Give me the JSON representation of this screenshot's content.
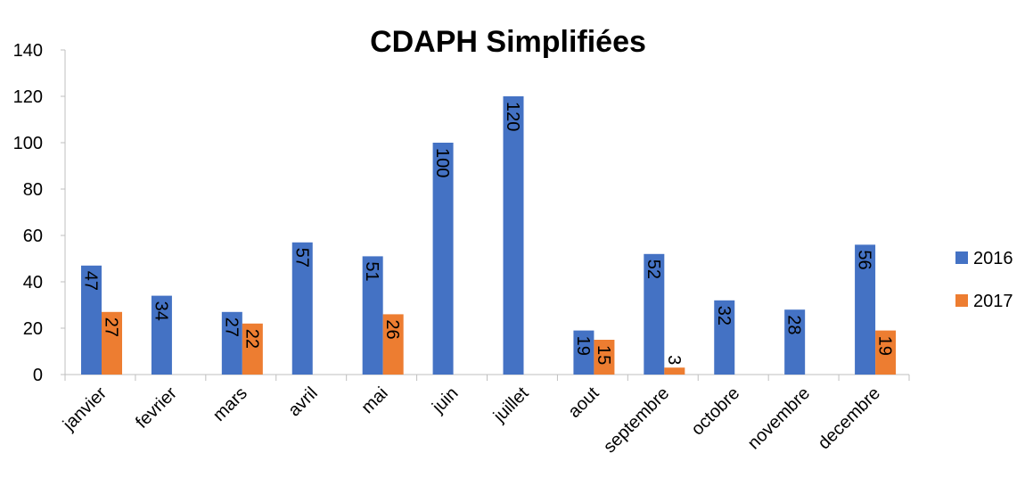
{
  "chart_data": {
    "type": "bar",
    "title": "CDAPH Simplifiées",
    "categories": [
      "janvier",
      "fevrier",
      "mars",
      "avril",
      "mai",
      "juin",
      "juillet",
      "aout",
      "septembre",
      "octobre",
      "novembre",
      "decembre"
    ],
    "series": [
      {
        "name": "2016",
        "color": "#4472c4",
        "values": [
          47,
          34,
          27,
          57,
          51,
          100,
          120,
          19,
          52,
          32,
          28,
          56
        ]
      },
      {
        "name": "2017",
        "color": "#ed7d31",
        "values": [
          27,
          null,
          22,
          null,
          26,
          null,
          null,
          15,
          3,
          null,
          null,
          19
        ]
      }
    ],
    "ylim": [
      0,
      140
    ],
    "yticks": [
      0,
      20,
      40,
      60,
      80,
      100,
      120,
      140
    ],
    "grid": false,
    "legend": "right"
  }
}
